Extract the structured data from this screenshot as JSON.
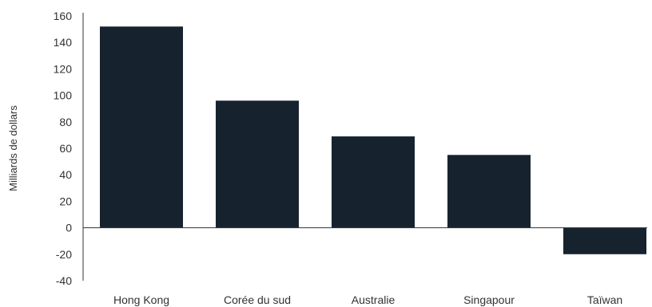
{
  "chart_data": {
    "type": "bar",
    "title": "",
    "xlabel": "",
    "ylabel": "Milliards de dollars",
    "categories": [
      "Hong Kong",
      "Corée du sud",
      "Australie",
      "Singapour",
      "Taïwan"
    ],
    "values": [
      152,
      96,
      69,
      55,
      -20
    ],
    "ylim": [
      -40,
      160
    ],
    "yticks": [
      160,
      140,
      120,
      100,
      80,
      60,
      40,
      20,
      0,
      -20,
      -40
    ],
    "ytick_labels": [
      "160",
      "140",
      "120",
      "100",
      "80",
      "60",
      "40",
      "20",
      "0",
      "-20",
      "-40"
    ],
    "bar_color": "#16232f",
    "axis_color": "#333333",
    "grid": false,
    "legend": "none"
  }
}
